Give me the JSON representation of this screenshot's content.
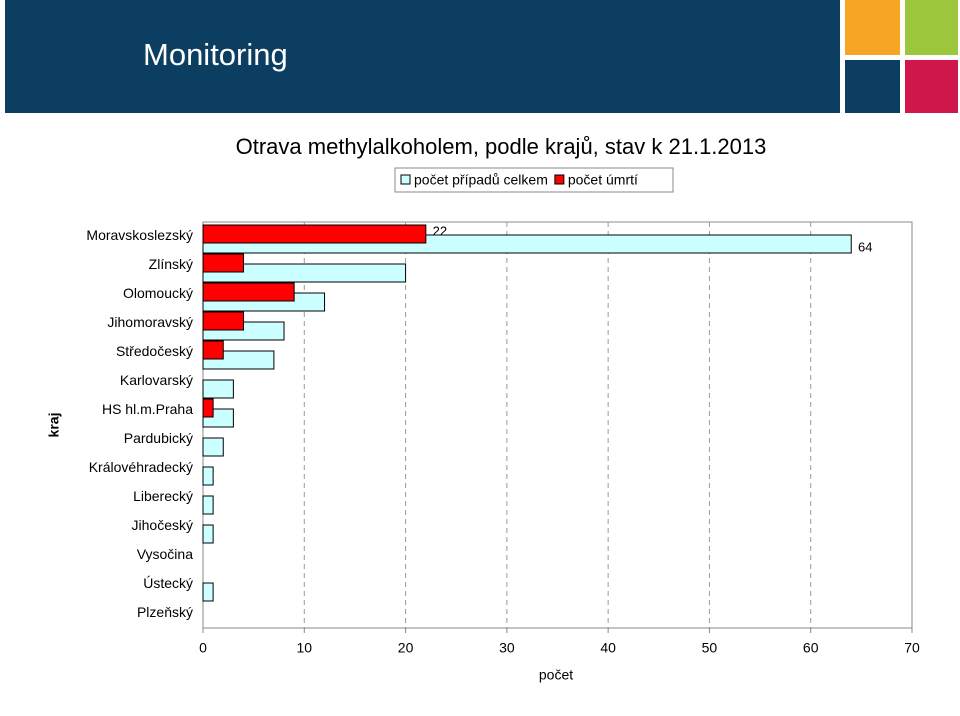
{
  "header": {
    "title": "Monitoring"
  },
  "chart_data": {
    "type": "bar",
    "orientation": "horizontal",
    "title": "Otrava methylalkoholem, podle krajů, stav k 21.1.2013",
    "x_label": "počet",
    "y_label": "kraj",
    "categories": [
      "Moravskoslezský",
      "Zlínský",
      "Olomoucký",
      "Jihomoravský",
      "Středočeský",
      "Karlovarský",
      "HS hl.m.Praha",
      "Pardubický",
      "Královéhradecký",
      "Liberecký",
      "Jihočeský",
      "Vysočina",
      "Ústecký",
      "Plzeňský"
    ],
    "series": [
      {
        "name": "počet případů celkem",
        "color": "#ccffff",
        "values": [
          64,
          20,
          12,
          8,
          7,
          3,
          3,
          2,
          1,
          1,
          1,
          0,
          1,
          0
        ]
      },
      {
        "name": "počet úmrtí",
        "color": "#ff0000",
        "values": [
          22,
          4,
          9,
          4,
          2,
          0,
          1,
          0,
          0,
          0,
          0,
          0,
          0,
          0
        ]
      }
    ],
    "xlim": [
      0,
      70
    ],
    "xticks": [
      0,
      10,
      20,
      30,
      40,
      50,
      60,
      70
    ],
    "grid": true,
    "legend": "top"
  }
}
